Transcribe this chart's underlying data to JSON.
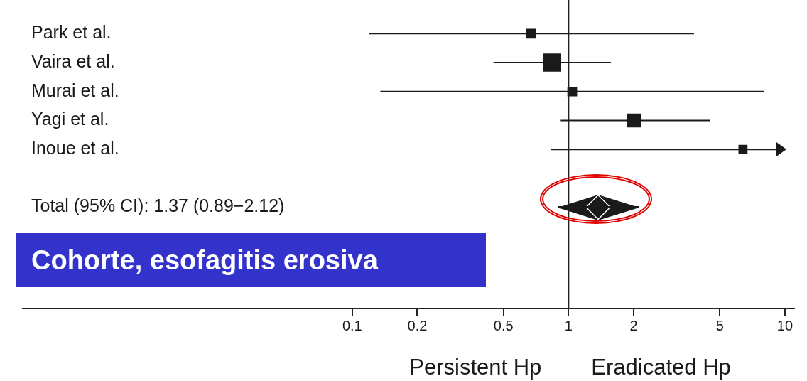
{
  "chart_data": {
    "type": "bubble",
    "orientation": "horizontal",
    "log": "x",
    "marker": "square",
    "grid": false,
    "legend": false,
    "categories": [
      "Park et al.",
      "Vaira et al.",
      "Murai et al.",
      "Yagi et al.",
      "Inoue et al.",
      null,
      "Total (95% CI): 1.37 (0.89−2.12)",
      null,
      null,
      null
    ],
    "xlim": [
      0.003,
      11
    ],
    "xticks": [
      0.1,
      0.2,
      0.5,
      1,
      2,
      5,
      10
    ],
    "series": [
      {
        "color": "#1a1a1a",
        "values": [
          0.67,
          0.84,
          1.04,
          2.01,
          6.4,
          null,
          null,
          null,
          null,
          null
        ],
        "sizes": [
          0.29,
          1,
          0.29,
          0.59,
          0.25,
          null,
          null,
          null,
          null,
          null
        ],
        "errors": [
          [
            0.12,
            3.8
          ],
          [
            0.45,
            1.57
          ],
          [
            0.135,
            8.0
          ],
          [
            0.92,
            4.5
          ],
          [
            0.83,
            10
          ],
          null,
          null,
          null,
          null,
          null
        ]
      },
      {
        "type": "scatter",
        "marker": "diamond",
        "color": "#1a1a1a",
        "values": [
          null,
          null,
          null,
          null,
          null,
          null,
          1.37,
          null,
          null,
          null
        ],
        "errors": [
          null,
          null,
          null,
          null,
          null,
          null,
          [
            0.89,
            2.12
          ],
          null,
          null,
          null
        ]
      }
    ],
    "ref_lines": [
      {
        "axis": "x",
        "value": 1,
        "color": "#222222"
      }
    ],
    "annotations": [
      "Persistent Hp",
      "Eradicated Hp",
      "Cohorte, esofagitis erosiva"
    ]
  }
}
